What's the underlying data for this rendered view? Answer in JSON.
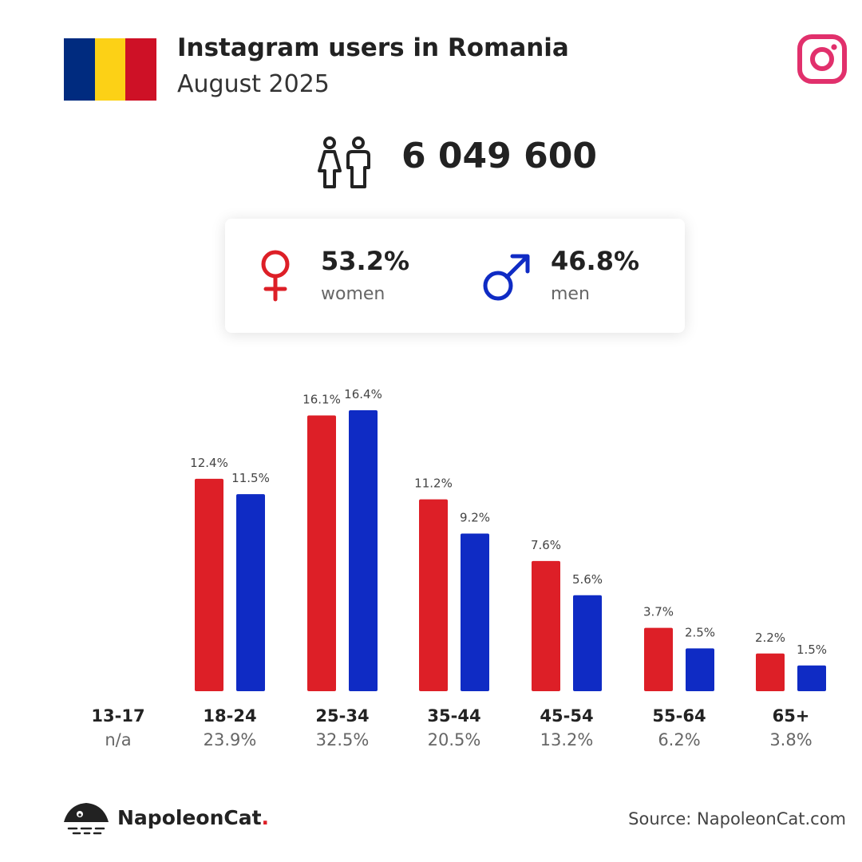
{
  "header": {
    "title": "Instagram users in Romania",
    "subtitle": "August 2025"
  },
  "flag_colors": [
    "#002b7f",
    "#fcd116",
    "#ce1126"
  ],
  "colors": {
    "women": "#dd1f27",
    "men": "#0f2bc4",
    "instagram": "#e1306c"
  },
  "icons": {
    "flag": "romania-flag-icon",
    "brand": "instagram-icon",
    "users": "people-icon",
    "women": "female-symbol-icon",
    "men": "male-symbol-icon",
    "company": "napoleoncat-logo-icon"
  },
  "total_users": "6 049 600",
  "gender": {
    "women": {
      "pct": "53.2%",
      "label": "women"
    },
    "men": {
      "pct": "46.8%",
      "label": "men"
    }
  },
  "chart_data": {
    "type": "bar",
    "categories": [
      "13-17",
      "18-24",
      "25-34",
      "35-44",
      "45-54",
      "55-64",
      "65+"
    ],
    "category_totals": [
      "n/a",
      "23.9%",
      "32.5%",
      "20.5%",
      "13.2%",
      "6.2%",
      "3.8%"
    ],
    "series": [
      {
        "name": "women",
        "values": [
          null,
          12.4,
          16.1,
          11.2,
          7.6,
          3.7,
          2.2
        ]
      },
      {
        "name": "men",
        "values": [
          null,
          11.5,
          16.4,
          9.2,
          5.6,
          2.5,
          1.5
        ]
      }
    ],
    "value_suffix": "%",
    "ylim": [
      0,
      16.4
    ],
    "grid": false,
    "title": "",
    "xlabel": "",
    "ylabel": ""
  },
  "footer": {
    "brand_name": "NapoleonCat",
    "brand_dot": ".",
    "source": "Source: NapoleonCat.com"
  }
}
